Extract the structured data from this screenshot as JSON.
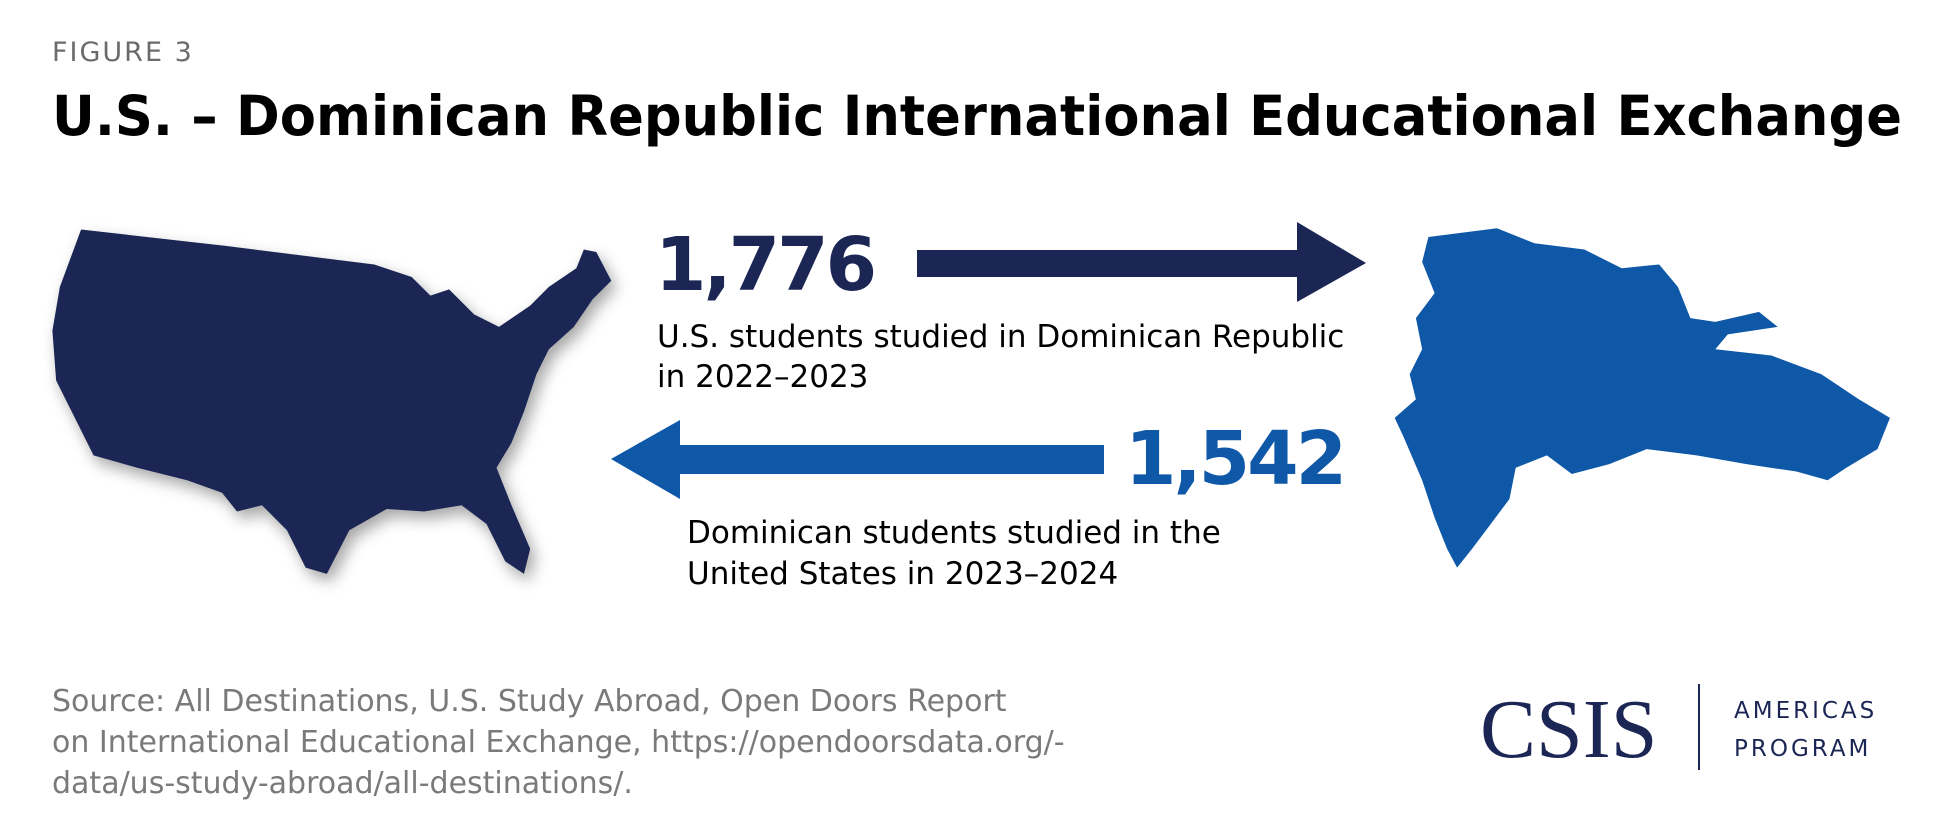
{
  "figure_label": "FIGURE 3",
  "title": "U.S. – Dominican Republic International Educational Exchange",
  "flows": [
    {
      "value": "1,776",
      "caption": [
        "U.S. students studied in Dominican Republic",
        "in 2022–2023"
      ]
    },
    {
      "value": "1,542",
      "caption": [
        "Dominican students studied in the",
        "United States in 2023–2024"
      ]
    }
  ],
  "source": [
    "Source: All Destinations, U.S. Study Abroad, Open Doors Report",
    "on International Educational Exchange, https://opendoorsdata.org/-",
    "data/us-study-abroad/all-destinations/."
  ],
  "logo": {
    "name": "CSIS",
    "program": [
      "AMERICAS",
      "PROGRAM"
    ]
  }
}
